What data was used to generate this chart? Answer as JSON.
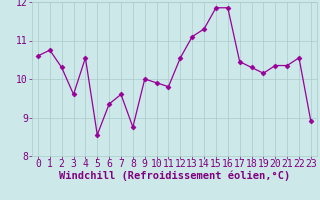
{
  "x": [
    0,
    1,
    2,
    3,
    4,
    5,
    6,
    7,
    8,
    9,
    10,
    11,
    12,
    13,
    14,
    15,
    16,
    17,
    18,
    19,
    20,
    21,
    22,
    23
  ],
  "y": [
    10.6,
    10.75,
    10.3,
    9.6,
    10.55,
    8.55,
    9.35,
    9.6,
    8.75,
    10.0,
    9.9,
    9.8,
    10.55,
    11.1,
    11.3,
    11.85,
    11.85,
    10.45,
    10.3,
    10.15,
    10.35,
    10.35,
    10.55,
    8.9
  ],
  "line_color": "#990099",
  "marker": "D",
  "markersize": 2.5,
  "linewidth": 0.9,
  "xlabel": "Windchill (Refroidissement éolien,°C)",
  "xlim": [
    -0.5,
    23.5
  ],
  "ylim": [
    8.0,
    12.0
  ],
  "yticks": [
    8,
    9,
    10,
    11,
    12
  ],
  "xticks": [
    0,
    1,
    2,
    3,
    4,
    5,
    6,
    7,
    8,
    9,
    10,
    11,
    12,
    13,
    14,
    15,
    16,
    17,
    18,
    19,
    20,
    21,
    22,
    23
  ],
  "bg_color": "#cce8e8",
  "grid_color": "#aacccc",
  "xlabel_color": "#800080",
  "tick_color": "#800080",
  "xlabel_fontsize": 7.5,
  "tick_fontsize": 7,
  "bottom_band_color": "#7722aa",
  "fig_width": 3.2,
  "fig_height": 2.0,
  "dpi": 100
}
